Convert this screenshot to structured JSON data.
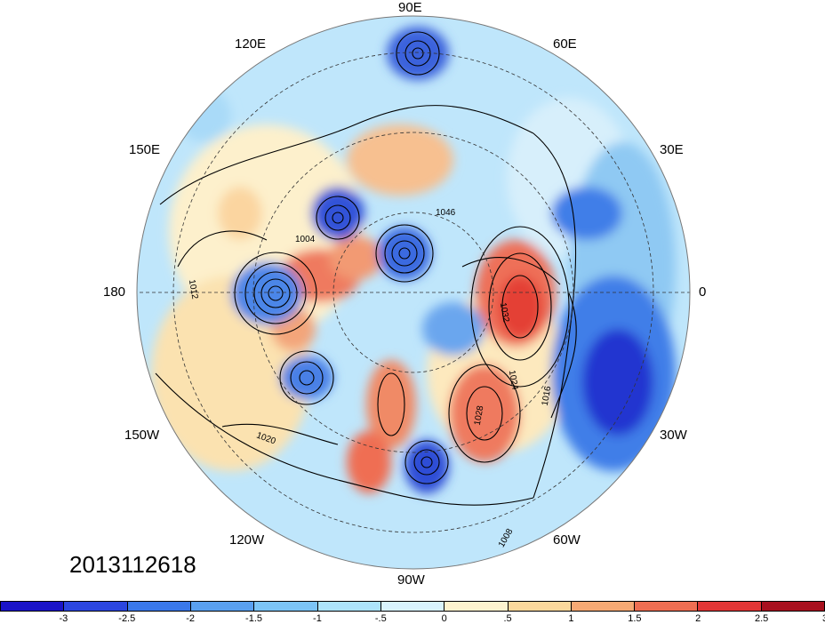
{
  "timestamp": "2013112618",
  "longitude_labels": [
    "90E",
    "60E",
    "30E",
    "0",
    "30W",
    "60W",
    "90W",
    "120W",
    "150W",
    "180",
    "150E",
    "120E"
  ],
  "isobar_labels": [
    "1004",
    "1008",
    "1012",
    "1016",
    "1020",
    "1024",
    "1028",
    "1032",
    "1046"
  ],
  "colorbar": {
    "ticks": [
      "-3",
      "-2.5",
      "-2",
      "-1.5",
      "-1",
      "-.5",
      "0",
      ".5",
      "1",
      "1.5",
      "2",
      "2.5",
      "3"
    ],
    "colors": [
      "#1a14c8",
      "#2b46e0",
      "#3a78ea",
      "#5aa0f0",
      "#7cc4f6",
      "#ade4fb",
      "#d9f3fd",
      "#fdf3cf",
      "#fbd89c",
      "#f6a974",
      "#ee6e52",
      "#e23636",
      "#a8101e"
    ]
  }
}
